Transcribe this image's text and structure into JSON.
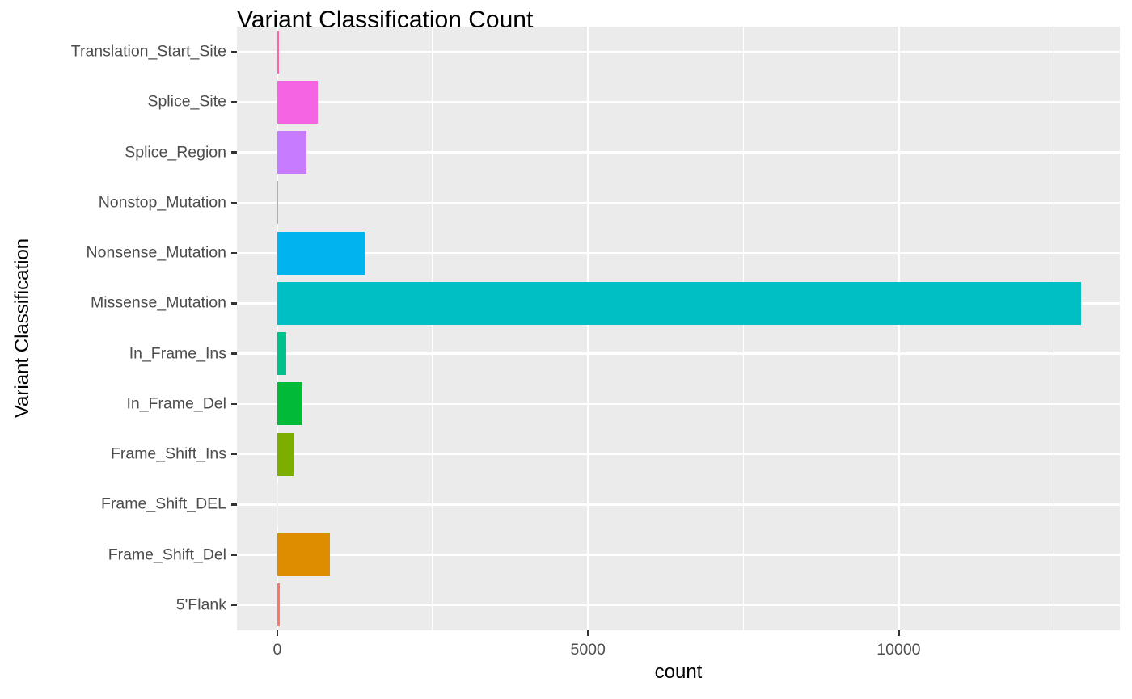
{
  "chart_data": {
    "type": "bar",
    "orientation": "horizontal",
    "title": "Variant Classification Count",
    "xlabel": "count",
    "ylabel": "Variant Classification",
    "xlim": [
      -650,
      13560
    ],
    "x_ticks": [
      0,
      5000,
      10000
    ],
    "x_tick_labels": [
      "0",
      "5000",
      "10000"
    ],
    "grid": true,
    "legend": "none",
    "categories": [
      "5'Flank",
      "Frame_Shift_Del",
      "Frame_Shift_DEL",
      "Frame_Shift_Ins",
      "In_Frame_Del",
      "In_Frame_Ins",
      "Missense_Mutation",
      "Nonsense_Mutation",
      "Nonstop_Mutation",
      "Splice_Region",
      "Splice_Site",
      "Translation_Start_Site"
    ],
    "values": [
      40,
      850,
      15,
      255,
      410,
      150,
      12930,
      1410,
      10,
      470,
      655,
      33
    ],
    "colors": [
      "#F8766D",
      "#DE8C00",
      "#F5F1E4",
      "#7CAE00",
      "#00BA38",
      "#00C08B",
      "#00BFC4",
      "#00B4F0",
      "#8AB8F0",
      "#C77CFF",
      "#F564E3",
      "#FF64B0"
    ]
  },
  "labels": {
    "title": "Variant Classification Count",
    "xlabel": "count",
    "ylabel": "Variant Classification",
    "xticks": [
      "0",
      "5000",
      "10000"
    ],
    "categories": [
      "5'Flank",
      "Frame_Shift_Del",
      "Frame_Shift_DEL",
      "Frame_Shift_Ins",
      "In_Frame_Del",
      "In_Frame_Ins",
      "Missense_Mutation",
      "Nonsense_Mutation",
      "Nonstop_Mutation",
      "Splice_Region",
      "Splice_Site",
      "Translation_Start_Site"
    ]
  }
}
